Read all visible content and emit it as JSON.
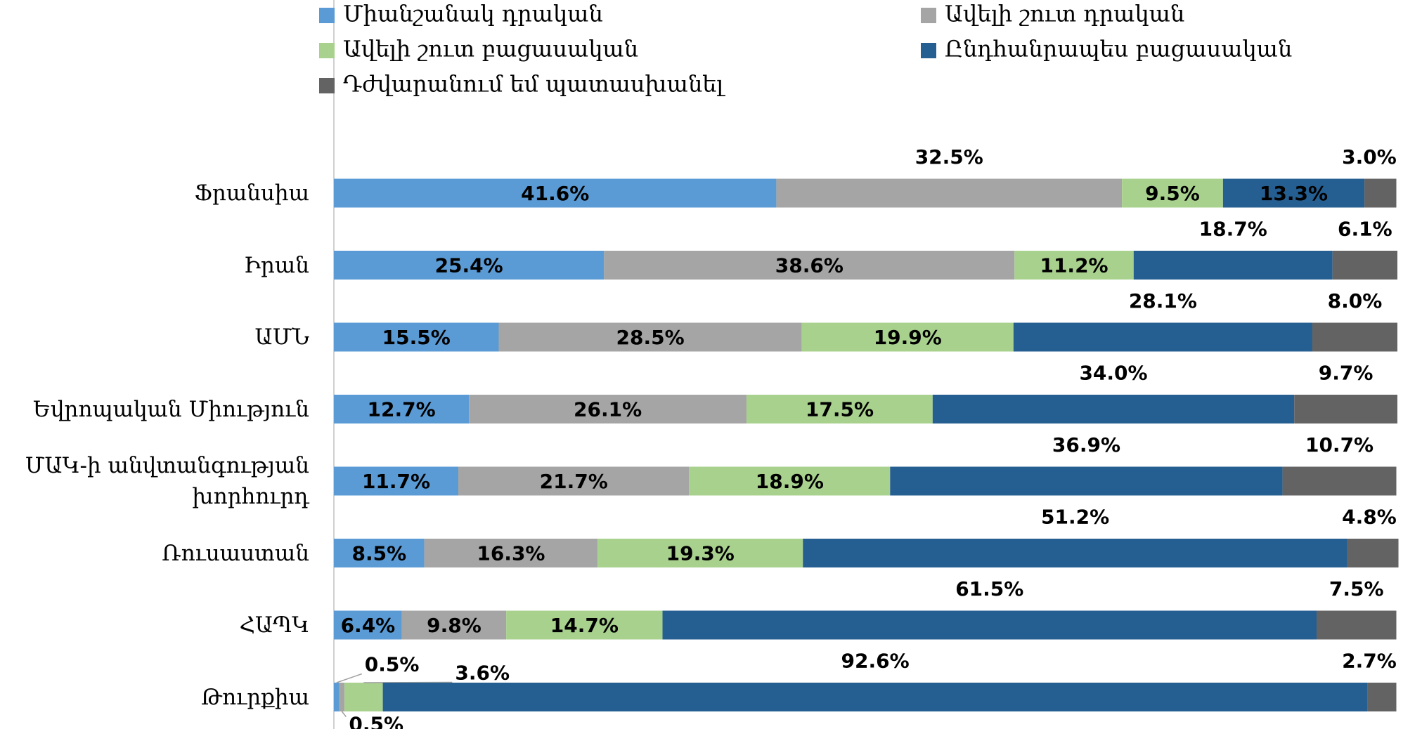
{
  "chart_data": {
    "type": "stacked-bar-horizontal",
    "categories": [
      "Ֆրանսիա",
      "Իրան",
      "ԱՄՆ",
      "Եվրոպական Միություն",
      "ՄԱԿ-ի անվտանգության խորհուրդ",
      "Ռուսաստան",
      "ՀԱՊԿ",
      "Թուրքիա"
    ],
    "series": [
      {
        "name": "Միանշանակ դրական",
        "color": "#5b9bd5",
        "values": [
          41.6,
          25.4,
          15.5,
          12.7,
          11.7,
          8.5,
          6.4,
          0.5
        ]
      },
      {
        "name": "Ավելի շուտ դրական",
        "color": "#a5a5a5",
        "values": [
          32.5,
          38.6,
          28.5,
          26.1,
          21.7,
          16.3,
          9.8,
          0.5
        ]
      },
      {
        "name": "Ավելի շուտ բացասական",
        "color": "#a9d18e",
        "values": [
          9.5,
          11.2,
          19.9,
          17.5,
          18.9,
          19.3,
          14.7,
          3.6
        ]
      },
      {
        "name": "Ընդհանրապես բացասական",
        "color": "#255e91",
        "values": [
          13.3,
          18.7,
          28.1,
          34.0,
          36.9,
          51.2,
          61.5,
          92.6
        ]
      },
      {
        "name": "Դժվարանում եմ պատասխանել",
        "color": "#636363",
        "values": [
          3.0,
          6.1,
          8.0,
          9.7,
          10.7,
          4.8,
          7.5,
          2.7
        ]
      }
    ],
    "value_labels": [
      [
        "41.6%",
        "25.4%",
        "15.5%",
        "12.7%",
        "11.7%",
        "8.5%",
        "6.4%",
        "0.5%"
      ],
      [
        "32.5%",
        "38.6%",
        "28.5%",
        "26.1%",
        "21.7%",
        "16.3%",
        "9.8%",
        "0.5%"
      ],
      [
        "9.5%",
        "11.2%",
        "19.9%",
        "17.5%",
        "18.9%",
        "19.3%",
        "14.7%",
        "3.6%"
      ],
      [
        "13.3%",
        "18.7%",
        "28.1%",
        "34.0%",
        "36.9%",
        "51.2%",
        "61.5%",
        "92.6%"
      ],
      [
        "3.0%",
        "6.1%",
        "8.0%",
        "9.7%",
        "10.7%",
        "4.8%",
        "7.5%",
        "2.7%"
      ]
    ],
    "legend": "top"
  }
}
